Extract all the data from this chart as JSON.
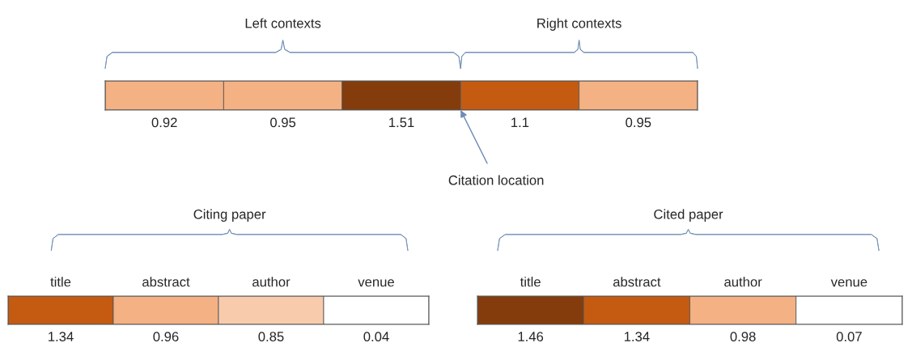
{
  "chart_data": [
    {
      "type": "other",
      "categories": [
        null,
        null,
        null,
        null,
        null
      ],
      "values": [
        0.92,
        0.95,
        1.51,
        1.1,
        0.95
      ],
      "colors": [
        "#f4b183",
        "#f4b183",
        "#843c0c",
        "#c55a11",
        "#f4b183"
      ],
      "data_labels": true,
      "annotations": [
        "Left contexts",
        "Right contexts",
        "Citation location"
      ]
    },
    {
      "type": "other",
      "categories": [
        "title",
        "abstract",
        "author",
        "venue"
      ],
      "values": [
        1.34,
        0.96,
        0.85,
        0.04
      ],
      "colors": [
        "#c55a11",
        "#f4b183",
        "#f8cbad",
        "#ffffff"
      ],
      "data_labels": true,
      "annotations": [
        "Citing paper"
      ]
    },
    {
      "type": "other",
      "categories": [
        "title",
        "abstract",
        "author",
        "venue"
      ],
      "values": [
        1.46,
        1.34,
        0.98,
        0.07
      ],
      "colors": [
        "#843c0c",
        "#c55a11",
        "#f4b183",
        "#ffffff"
      ],
      "data_labels": true,
      "annotations": [
        "Cited paper"
      ]
    }
  ]
}
